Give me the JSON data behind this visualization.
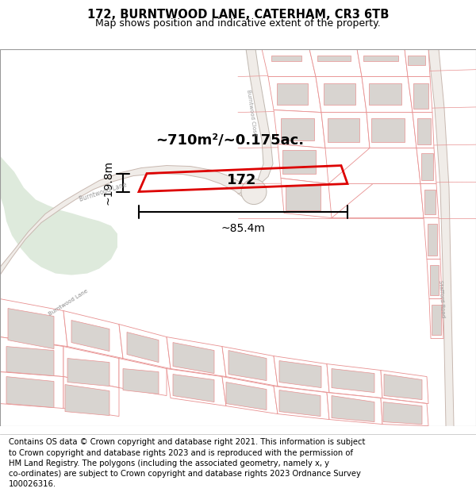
{
  "title_line1": "172, BURNTWOOD LANE, CATERHAM, CR3 6TB",
  "title_line2": "Map shows position and indicative extent of the property.",
  "footer_text": "Contains OS data © Crown copyright and database right 2021. This information is subject to Crown copyright and database rights 2023 and is reproduced with the permission of HM Land Registry. The polygons (including the associated geometry, namely x, y co-ordinates) are subject to Crown copyright and database rights 2023 Ordnance Survey 100026316.",
  "area_label": "~710m²/~0.175ac.",
  "number_label": "172",
  "width_label": "~85.4m",
  "height_label": "~19.8m",
  "bg_color": "#ffffff",
  "green_color": "#deeadc",
  "map_bg": "#f8f5f2",
  "plot_line_color": "#e89090",
  "road_line_color": "#c8b8b0",
  "highlight_color": "#dd0000",
  "building_color": "#d8d4d0",
  "title_fontsize": 10.5,
  "subtitle_fontsize": 9,
  "footer_fontsize": 7.2,
  "road_label_color": "#888888"
}
